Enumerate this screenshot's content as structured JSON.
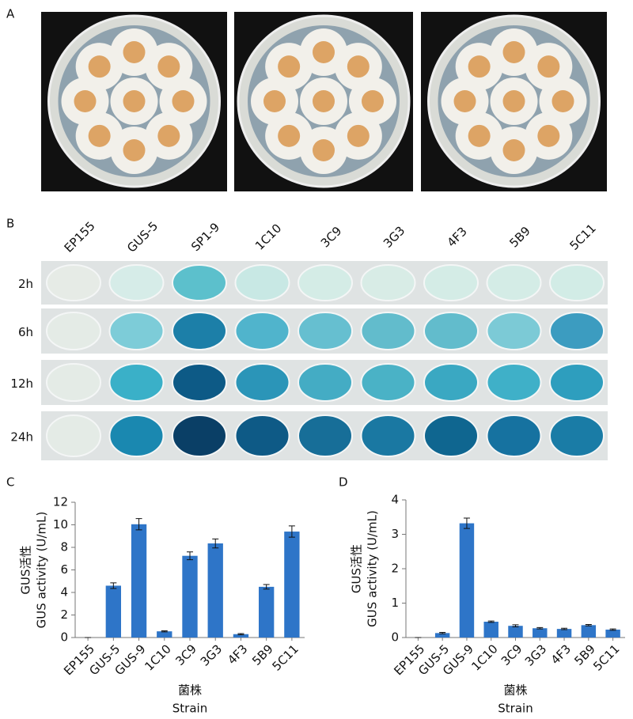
{
  "panels": {
    "A": {
      "label": "A"
    },
    "B": {
      "label": "B",
      "columns": [
        "EP155",
        "GUS-5",
        "SP1-9",
        "1C10",
        "3C9",
        "3G3",
        "4F3",
        "5B9",
        "5C11"
      ],
      "rows": [
        "2h",
        "6h",
        "12h",
        "24h"
      ]
    }
  },
  "chart_data": [
    {
      "type": "bar",
      "panel_label": "C",
      "y_label": [
        "GUS活性",
        "GUS activity (U/mL)"
      ],
      "x_label": [
        "菌株",
        "Strain"
      ],
      "categories": [
        "EP155",
        "GUS-5",
        "GUS-9",
        "1C10",
        "3C9",
        "3G3",
        "4F3",
        "5B9",
        "5C11"
      ],
      "values": [
        0,
        4.6,
        10.05,
        0.55,
        7.25,
        8.35,
        0.3,
        4.5,
        9.4
      ],
      "errors": [
        0,
        0.25,
        0.5,
        0.05,
        0.35,
        0.4,
        0.05,
        0.2,
        0.5
      ],
      "color": "#2e75c8",
      "ylim": [
        0,
        12
      ],
      "yticks": [
        0,
        2,
        4,
        6,
        8,
        10,
        12
      ]
    },
    {
      "type": "bar",
      "panel_label": "D",
      "y_label": [
        "GUS活性",
        "GUS activity (U/mL)"
      ],
      "x_label": [
        "菌株",
        "Strain"
      ],
      "categories": [
        "EP155",
        "GUS-5",
        "GUS-9",
        "1C10",
        "3C9",
        "3G3",
        "4F3",
        "5B9",
        "5C11"
      ],
      "values": [
        0,
        0.13,
        3.32,
        0.46,
        0.34,
        0.27,
        0.25,
        0.36,
        0.23
      ],
      "errors": [
        0,
        0.02,
        0.15,
        0.02,
        0.03,
        0.02,
        0.02,
        0.02,
        0.02
      ],
      "color": "#2e75c8",
      "ylim": [
        0,
        4
      ],
      "yticks": [
        0,
        1,
        2,
        3,
        4
      ]
    }
  ]
}
